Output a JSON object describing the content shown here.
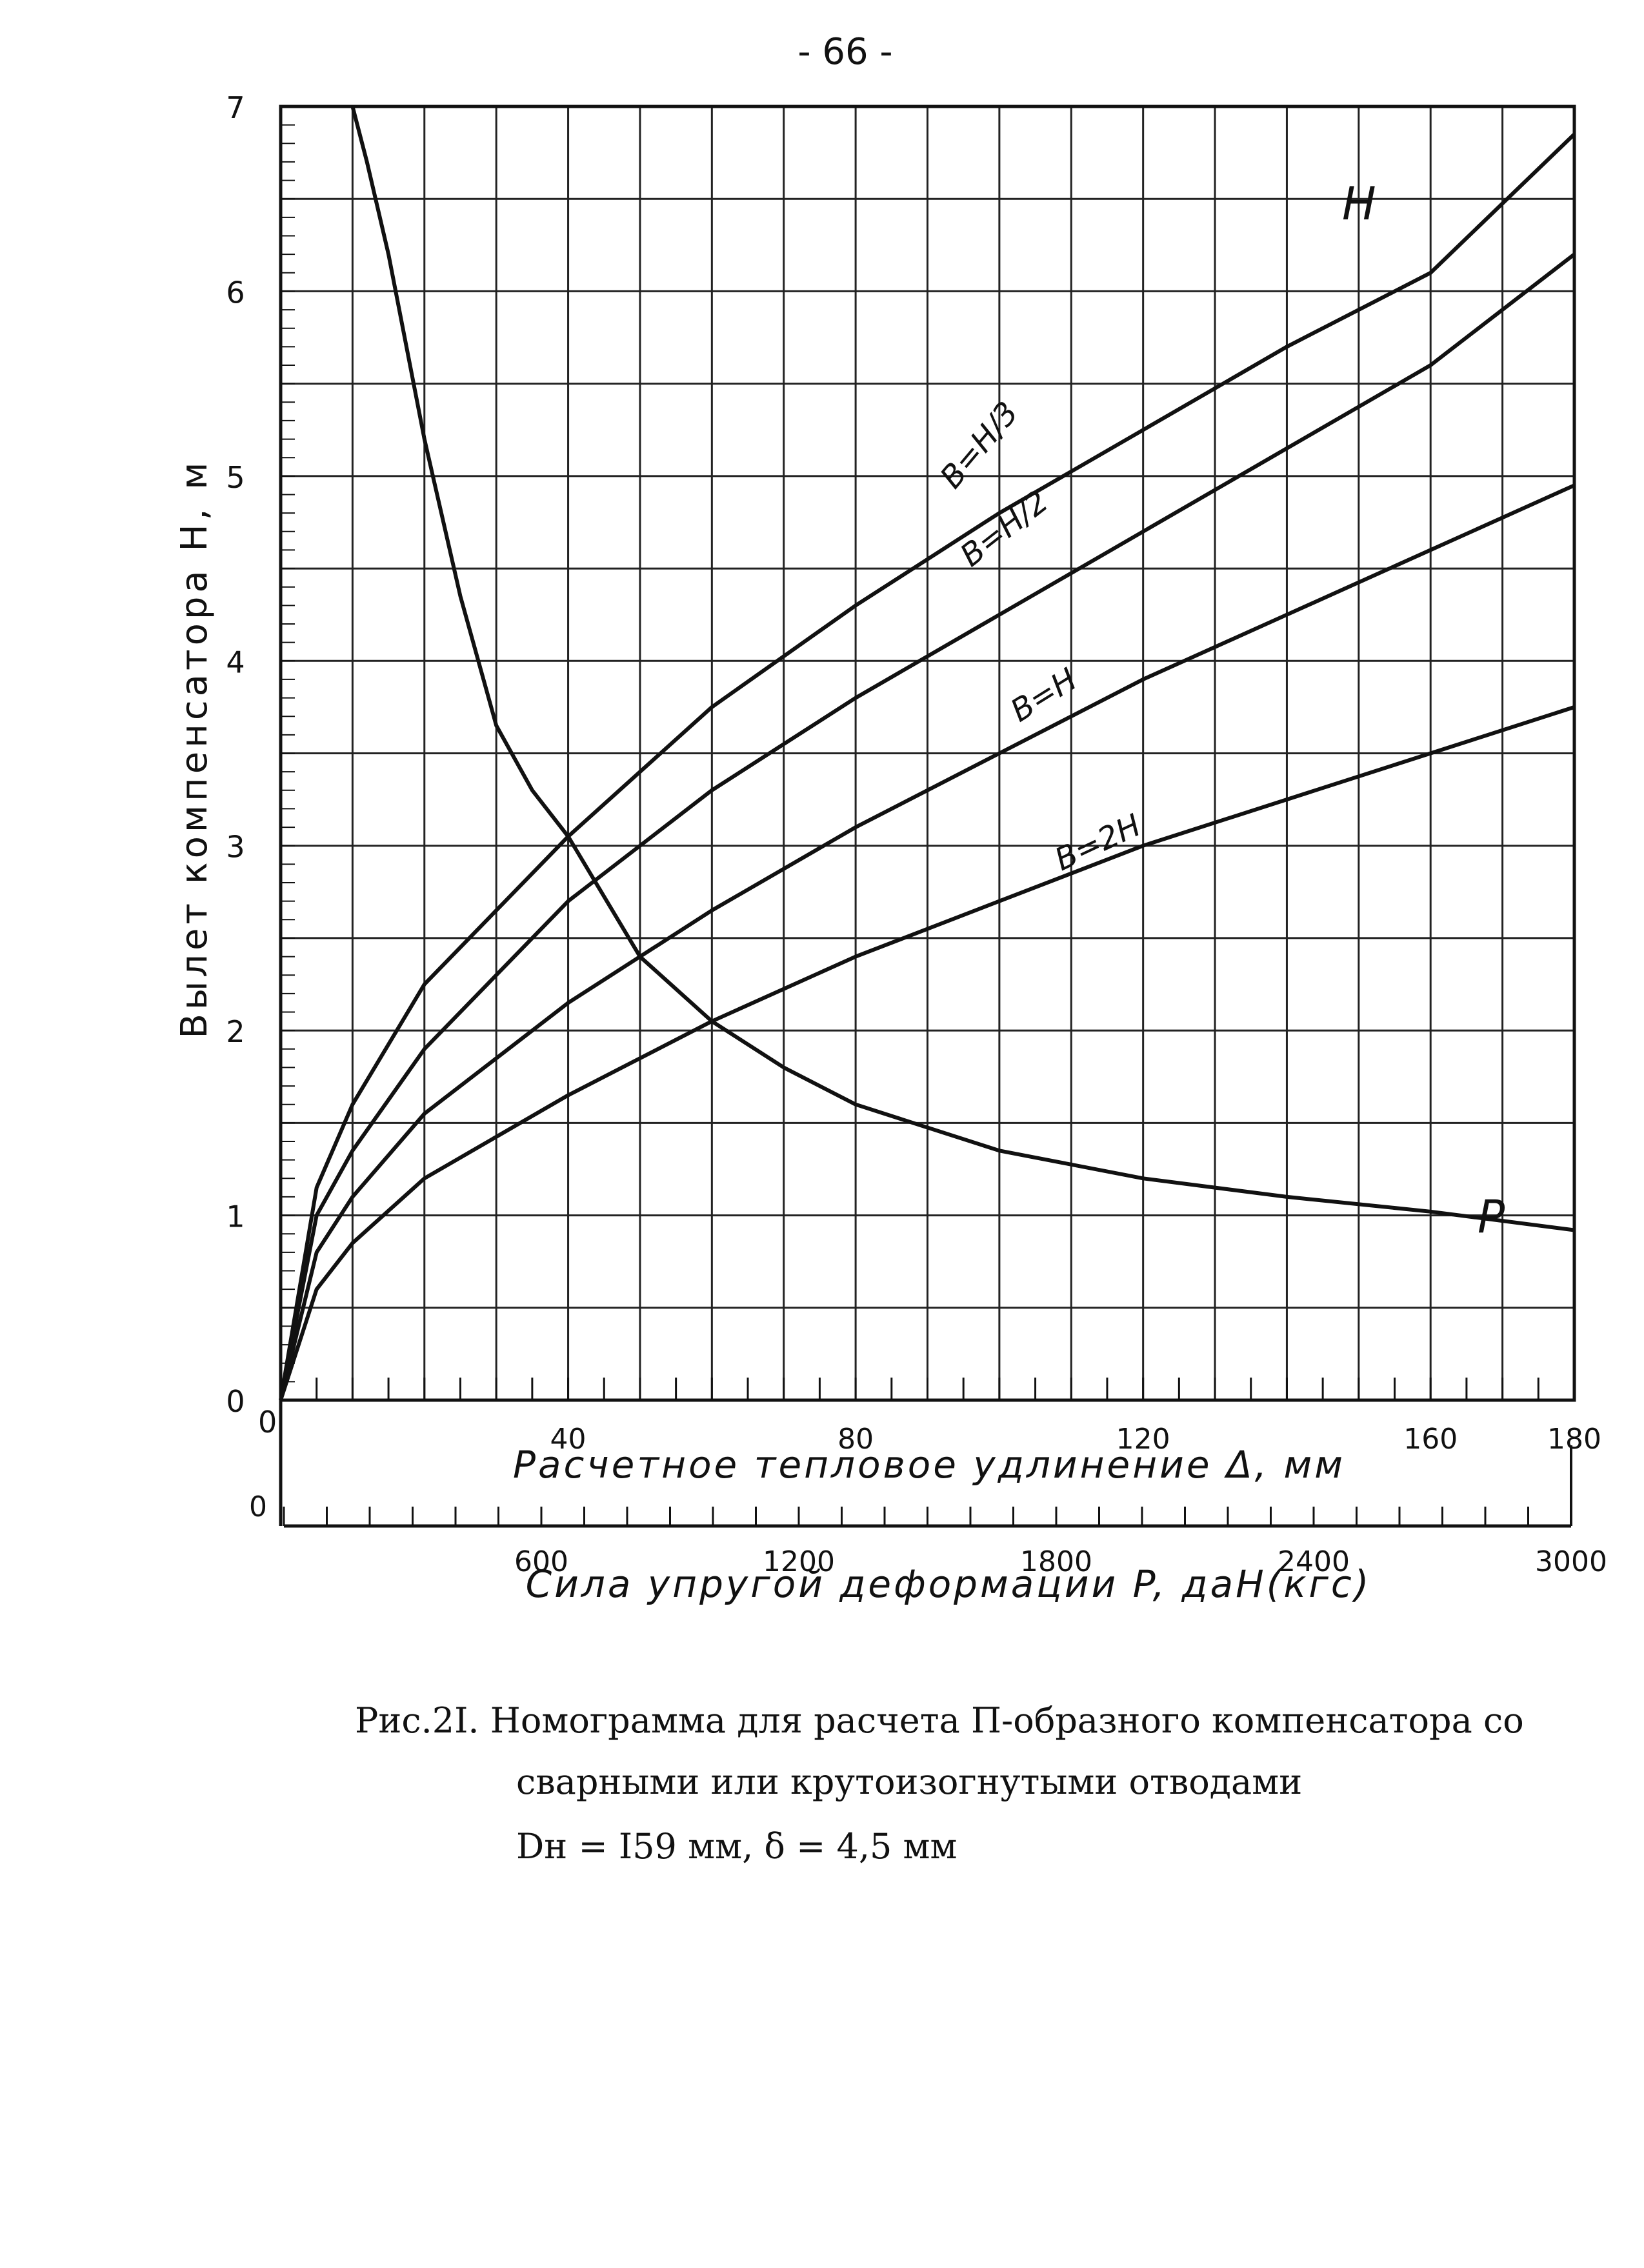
{
  "page": {
    "page_number": "- 66 -",
    "caption": {
      "line1": "Рис.2I. Номограмма для расчета П-образного компенсатора со",
      "line2": "сварными или крутоизогнутыми отводами",
      "line3": "Dн = I59 мм,  δ = 4,5 мм"
    }
  },
  "chart_data": {
    "type": "line",
    "title": "",
    "xlabel": "Расчетное тепловое удлинение  Δ, мм",
    "x2label": "Сила  упругой   деформации  P, даН(кгс)",
    "ylabel": "Вылет  компенсатора  H, м",
    "xlim": [
      0,
      180
    ],
    "x2lim": [
      0,
      3000
    ],
    "ylim": [
      0,
      7
    ],
    "grid": true,
    "legend": "none",
    "y_ticks": [
      "0",
      "1",
      "2",
      "3",
      "4",
      "5",
      "6",
      "7"
    ],
    "x_ticks": [
      "40",
      "80",
      "120",
      "160",
      "180"
    ],
    "x_ticks_values": [
      40,
      80,
      120,
      160,
      180
    ],
    "x2_ticks": [
      "0",
      "600",
      "1200",
      "1800",
      "2400",
      "3000"
    ],
    "x2_ticks_values": [
      0,
      600,
      1200,
      1800,
      2400,
      3000
    ],
    "series": [
      {
        "name": "B=H/3",
        "label": "B=H/3",
        "x": [
          0,
          5,
          10,
          20,
          40,
          60,
          80,
          100,
          120,
          140,
          160,
          180
        ],
        "y": [
          0,
          1.15,
          1.6,
          2.25,
          3.05,
          3.75,
          4.3,
          4.8,
          5.25,
          5.7,
          6.1,
          6.85
        ]
      },
      {
        "name": "H",
        "label": "H",
        "x": [],
        "y": []
      },
      {
        "name": "B=H/2",
        "label": "B=H/2",
        "x": [
          0,
          5,
          10,
          20,
          40,
          60,
          80,
          100,
          120,
          140,
          160,
          180
        ],
        "y": [
          0,
          1.0,
          1.35,
          1.9,
          2.7,
          3.3,
          3.8,
          4.25,
          4.7,
          5.15,
          5.6,
          6.2
        ]
      },
      {
        "name": "B=H",
        "label": "B=H",
        "x": [
          0,
          5,
          10,
          20,
          40,
          60,
          80,
          100,
          120,
          140,
          160,
          180
        ],
        "y": [
          0,
          0.8,
          1.1,
          1.55,
          2.15,
          2.65,
          3.1,
          3.5,
          3.9,
          4.25,
          4.6,
          4.95
        ]
      },
      {
        "name": "B=2H",
        "label": "B=2H",
        "x": [
          0,
          5,
          10,
          20,
          40,
          60,
          80,
          100,
          120,
          140,
          160,
          180
        ],
        "y": [
          0,
          0.6,
          0.85,
          1.2,
          1.65,
          2.05,
          2.4,
          2.7,
          3.0,
          3.25,
          3.5,
          3.75
        ]
      },
      {
        "name": "P",
        "label": "P",
        "x": [
          10,
          12,
          15,
          20,
          25,
          30,
          35,
          40,
          50,
          60,
          70,
          80,
          100,
          120,
          140,
          160,
          180
        ],
        "y": [
          7.0,
          6.7,
          6.2,
          5.2,
          4.35,
          3.65,
          3.3,
          3.05,
          2.4,
          2.05,
          1.8,
          1.6,
          1.35,
          1.2,
          1.1,
          1.02,
          0.92
        ]
      }
    ]
  }
}
